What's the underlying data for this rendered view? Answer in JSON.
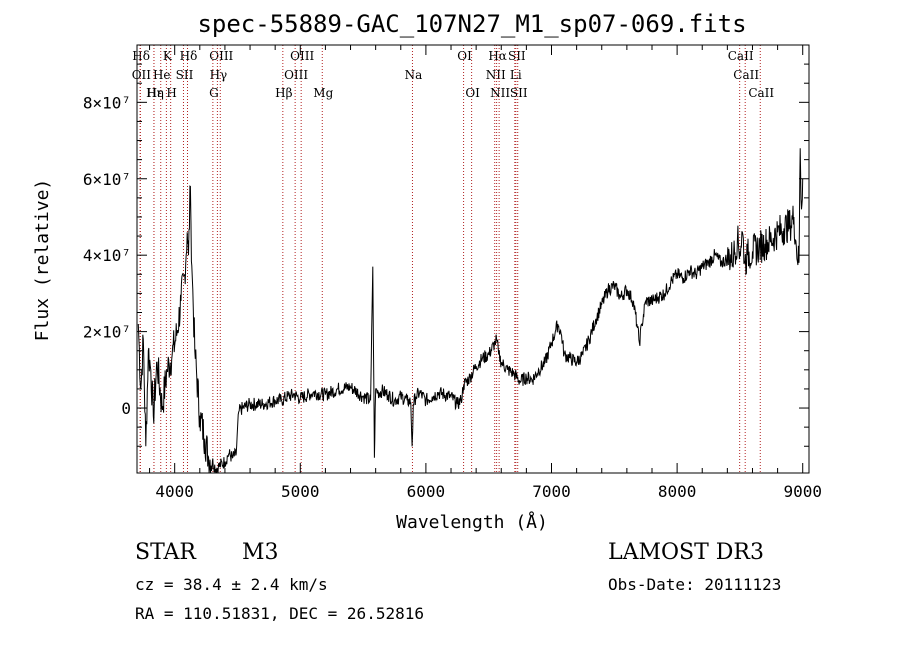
{
  "chart_data": {
    "type": "line",
    "title": "spec-55889-GAC_107N27_M1_sp07-069.fits",
    "xlabel": "Wavelength (Å)",
    "ylabel": "Flux (relative)",
    "xlim": [
      3700,
      9050
    ],
    "ylim": [
      -17000000,
      95000000
    ],
    "x_ticks": [
      4000,
      5000,
      6000,
      7000,
      8000,
      9000
    ],
    "x_tick_labels": [
      "4000",
      "5000",
      "6000",
      "7000",
      "8000",
      "9000"
    ],
    "y_ticks": [
      0,
      20000000,
      40000000,
      60000000,
      80000000
    ],
    "y_tick_labels": [
      "0",
      "2×10⁷",
      "4×10⁷",
      "6×10⁷",
      "8×10⁷"
    ],
    "series": [
      {
        "name": "flux",
        "x": [
          3710,
          3730,
          3750,
          3770,
          3790,
          3810,
          3830,
          3860,
          3900,
          3940,
          3980,
          4020,
          4050,
          4080,
          4100,
          4110,
          4125,
          4130,
          4140,
          4160,
          4200,
          4240,
          4270,
          4300,
          4330,
          4360,
          4400,
          4430,
          4460,
          4490,
          4510,
          4540,
          4600,
          4700,
          4800,
          4850,
          4900,
          4950,
          5000,
          5100,
          5200,
          5300,
          5400,
          5500,
          5560,
          5577,
          5590,
          5600,
          5620,
          5650,
          5700,
          5750,
          5800,
          5850,
          5880,
          5890,
          5895,
          5900,
          5920,
          5950,
          6000,
          6050,
          6100,
          6200,
          6250,
          6280,
          6300,
          6350,
          6400,
          6450,
          6500,
          6550,
          6563,
          6580,
          6600,
          6650,
          6700,
          6750,
          6800,
          6850,
          6900,
          6950,
          7000,
          7030,
          7050,
          7080,
          7100,
          7150,
          7200,
          7250,
          7300,
          7350,
          7400,
          7450,
          7500,
          7550,
          7600,
          7650,
          7680,
          7700,
          7720,
          7750,
          7800,
          7850,
          7900,
          7950,
          8000,
          8050,
          8100,
          8150,
          8200,
          8250,
          8300,
          8350,
          8400,
          8450,
          8480,
          8500,
          8520,
          8540,
          8560,
          8600,
          8650,
          8700,
          8750,
          8800,
          8850,
          8900,
          8930,
          8950,
          8970,
          8980,
          8990,
          9000
        ],
        "values": [
          22000000,
          5000000,
          18000000,
          -10000000,
          15000000,
          10000000,
          -2000000,
          12000000,
          0,
          10000000,
          14000000,
          20000000,
          28000000,
          35000000,
          46000000,
          40000000,
          58000000,
          48000000,
          34000000,
          15000000,
          -2000000,
          -8000000,
          -13000000,
          -14000000,
          -16000000,
          -15000000,
          -14000000,
          -12000000,
          -13000000,
          -12000000,
          -1000000,
          0,
          1000000,
          1000000,
          2000000,
          2000000,
          3000000,
          3500000,
          2500000,
          4000000,
          3500000,
          5000000,
          5500000,
          3000000,
          2000000,
          37000000,
          -13000000,
          5000000,
          4000000,
          4500000,
          3500000,
          2000000,
          3000000,
          2000000,
          1500000,
          -10000000,
          -6000000,
          1000000,
          3000000,
          4000000,
          2000000,
          3000000,
          4000000,
          3000000,
          1000000,
          2000000,
          6000000,
          8000000,
          11000000,
          13000000,
          14000000,
          17000000,
          18000000,
          14000000,
          12000000,
          10000000,
          9000000,
          7000000,
          8000000,
          7500000,
          10000000,
          12000000,
          17000000,
          20000000,
          22000000,
          19000000,
          14000000,
          13000000,
          12000000,
          14000000,
          18000000,
          23000000,
          27000000,
          31000000,
          32000000,
          29000000,
          31000000,
          28000000,
          22000000,
          17000000,
          22000000,
          28000000,
          28000000,
          29000000,
          30000000,
          33000000,
          35000000,
          34000000,
          36000000,
          35000000,
          37000000,
          38000000,
          40000000,
          38000000,
          39000000,
          40000000,
          44000000,
          41000000,
          46000000,
          38000000,
          40000000,
          41000000,
          42000000,
          43000000,
          44000000,
          46000000,
          47000000,
          48000000,
          50000000,
          42000000,
          38000000,
          68000000,
          52000000,
          60000000
        ]
      }
    ],
    "lines": [
      {
        "label": "Hδ",
        "x": 3725,
        "row": 0
      },
      {
        "label": "K",
        "x": 3934,
        "row": 0
      },
      {
        "label": "Hδ",
        "x": 4102,
        "row": 0
      },
      {
        "label": "OIII",
        "x": 4363,
        "row": 0
      },
      {
        "label": "OIII",
        "x": 5007,
        "row": 0
      },
      {
        "label": "OI",
        "x": 6300,
        "row": 0
      },
      {
        "label": "Hα",
        "x": 6563,
        "row": 0
      },
      {
        "label": "SII",
        "x": 6716,
        "row": 0
      },
      {
        "label": "CaII",
        "x": 8498,
        "row": 0
      },
      {
        "label": "OII",
        "x": 3727,
        "row": 1
      },
      {
        "label": "He",
        "x": 3889,
        "row": 1
      },
      {
        "label": "SII",
        "x": 4070,
        "row": 1
      },
      {
        "label": "Hγ",
        "x": 4340,
        "row": 1
      },
      {
        "label": "OIII",
        "x": 4959,
        "row": 1
      },
      {
        "label": "Na",
        "x": 5893,
        "row": 1
      },
      {
        "label": "NII",
        "x": 6548,
        "row": 1
      },
      {
        "label": "Li",
        "x": 6708,
        "row": 1
      },
      {
        "label": "CaII",
        "x": 8542,
        "row": 1
      },
      {
        "label": "Hε",
        "x": 3835,
        "row": 2
      },
      {
        "label": "Hη",
        "x": 3835,
        "row": 2
      },
      {
        "label": "H",
        "x": 3968,
        "row": 2
      },
      {
        "label": "G",
        "x": 4304,
        "row": 2
      },
      {
        "label": "Hβ",
        "x": 4861,
        "row": 2
      },
      {
        "label": "Mg",
        "x": 5175,
        "row": 2
      },
      {
        "label": "OI",
        "x": 6364,
        "row": 2
      },
      {
        "label": "NII",
        "x": 6583,
        "row": 2
      },
      {
        "label": "SII",
        "x": 6731,
        "row": 2
      },
      {
        "label": "CaII",
        "x": 8662,
        "row": 2
      }
    ]
  },
  "info": {
    "object_class": "STAR",
    "subclass": "M3",
    "survey": "LAMOST DR3",
    "redshift": "cz = 38.4 ± 2.4 km/s",
    "obs_date": "Obs-Date: 20111123",
    "coords": "RA = 110.51831, DEC =  26.52816"
  }
}
